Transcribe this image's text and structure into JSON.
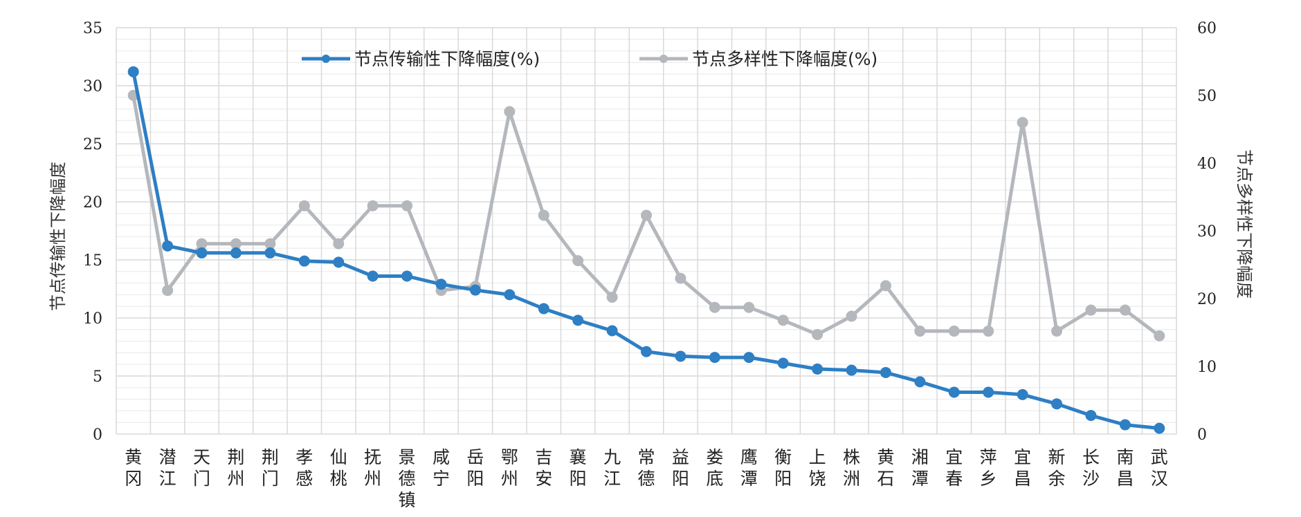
{
  "chart_data": {
    "type": "line",
    "categories": [
      [
        "黄",
        "冈"
      ],
      [
        "潜",
        "江"
      ],
      [
        "天",
        "门"
      ],
      [
        "荆",
        "州"
      ],
      [
        "荆",
        "门"
      ],
      [
        "孝",
        "感"
      ],
      [
        "仙",
        "桃"
      ],
      [
        "抚",
        "州"
      ],
      [
        "景",
        "德",
        "镇"
      ],
      [
        "咸",
        "宁"
      ],
      [
        "岳",
        "阳"
      ],
      [
        "鄂",
        "州"
      ],
      [
        "吉",
        "安"
      ],
      [
        "襄",
        "阳"
      ],
      [
        "九",
        "江"
      ],
      [
        "常",
        "德"
      ],
      [
        "益",
        "阳"
      ],
      [
        "娄",
        "底"
      ],
      [
        "鹰",
        "潭"
      ],
      [
        "衡",
        "阳"
      ],
      [
        "上",
        "饶"
      ],
      [
        "株",
        "洲"
      ],
      [
        "黄",
        "石"
      ],
      [
        "湘",
        "潭"
      ],
      [
        "宜",
        "春"
      ],
      [
        "萍",
        "乡"
      ],
      [
        "宜",
        "昌"
      ],
      [
        "新",
        "余"
      ],
      [
        "长",
        "沙"
      ],
      [
        "南",
        "昌"
      ],
      [
        "武",
        "汉"
      ]
    ],
    "series": [
      {
        "name": "节点传输性下降幅度(%)",
        "axis": "left",
        "color": "#2e7fc4",
        "values": [
          31.2,
          16.2,
          15.6,
          15.6,
          15.6,
          14.9,
          14.8,
          13.6,
          13.6,
          12.9,
          12.4,
          12.0,
          10.8,
          9.8,
          8.9,
          7.1,
          6.7,
          6.6,
          6.6,
          6.1,
          5.6,
          5.5,
          5.3,
          4.5,
          3.6,
          3.6,
          3.4,
          2.6,
          1.6,
          0.8,
          0.5
        ]
      },
      {
        "name": "节点多样性下降幅度(%)",
        "axis": "right",
        "color": "#b4b7bc",
        "values": [
          50.0,
          21.2,
          28.1,
          28.1,
          28.1,
          33.7,
          28.1,
          33.7,
          33.7,
          21.2,
          21.8,
          47.6,
          32.3,
          25.6,
          20.2,
          32.3,
          23.0,
          18.7,
          18.7,
          16.8,
          14.7,
          17.4,
          21.9,
          15.2,
          15.2,
          15.2,
          46.0,
          15.2,
          18.3,
          18.3,
          14.5
        ]
      }
    ],
    "ylabel_left": "节点传输性下降幅度",
    "ylabel_right": "节点多样性下降幅度",
    "ylim_left": [
      0,
      35
    ],
    "yticks_left": [
      0,
      5,
      10,
      15,
      20,
      25,
      30,
      35
    ],
    "ylim_right": [
      0,
      60
    ],
    "yticks_right": [
      0,
      10,
      20,
      30,
      40,
      50,
      60
    ],
    "grid": true,
    "legend": "top-center"
  }
}
